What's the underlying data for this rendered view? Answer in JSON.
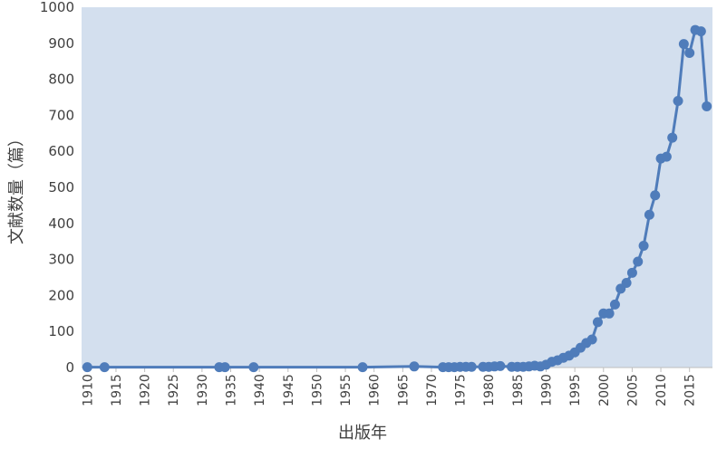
{
  "chart_data": {
    "type": "line",
    "title": "",
    "xlabel": "出版年",
    "ylabel": "文献数量（篇）",
    "xlim": [
      1909,
      2019
    ],
    "ylim": [
      0,
      1000
    ],
    "x_ticks": [
      1910,
      1915,
      1920,
      1925,
      1930,
      1935,
      1940,
      1945,
      1950,
      1955,
      1960,
      1965,
      1970,
      1975,
      1980,
      1985,
      1990,
      1995,
      2000,
      2005,
      2010,
      2015
    ],
    "y_ticks": [
      0,
      100,
      200,
      300,
      400,
      500,
      600,
      700,
      800,
      900,
      1000
    ],
    "grid": false,
    "plot_background": "#d3dfee",
    "line_color": "#4f7cba",
    "series": [
      {
        "x": [
          1910,
          1913,
          1933,
          1934,
          1939,
          1958,
          1967,
          1972,
          1973,
          1974,
          1975,
          1976,
          1977,
          1979,
          1980,
          1981,
          1982,
          1984,
          1985,
          1986,
          1987,
          1988,
          1989,
          1990,
          1991,
          1992,
          1993,
          1994,
          1995,
          1996,
          1997,
          1998,
          1999,
          2000,
          2001,
          2002,
          2003,
          2004,
          2005,
          2006,
          2007,
          2008,
          2009,
          2010,
          2011,
          2012,
          2013,
          2014,
          2015,
          2016,
          2017,
          2018
        ],
        "y": [
          1,
          1,
          1,
          1,
          1,
          1,
          3,
          1,
          1,
          1,
          2,
          2,
          2,
          2,
          2,
          3,
          4,
          2,
          2,
          2,
          3,
          5,
          3,
          8,
          16,
          20,
          27,
          33,
          42,
          55,
          68,
          78,
          126,
          150,
          150,
          175,
          219,
          235,
          263,
          294,
          338,
          424,
          478,
          580,
          585,
          638,
          740,
          898,
          873,
          937,
          933,
          725
        ]
      }
    ]
  }
}
